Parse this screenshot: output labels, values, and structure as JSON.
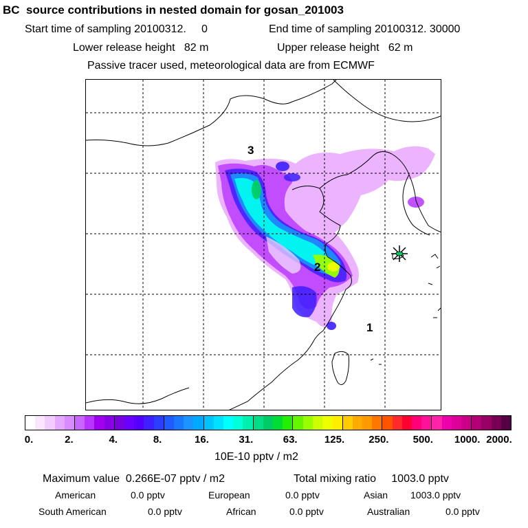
{
  "header": {
    "title": "BC  source contributions in nested domain for gosan_201003",
    "start_time": "Start time of sampling 20100312.     0",
    "end_time": "End time of sampling 20100312. 30000",
    "lower_height": "Lower release height   82 m",
    "upper_height": "Upper release height   62 m",
    "tracer_note": "Passive tracer used, meteorological data are from ECMWF"
  },
  "map": {
    "region_labels": [
      "3",
      "2",
      "1"
    ],
    "receptor_marker": "star-marker",
    "colors": {
      "plume_outer": "#cc66ff",
      "plume_purple": "#9900ee",
      "plume_blue": "#3333ff",
      "plume_lightblue": "#0099ff",
      "plume_cyan": "#00ffee",
      "plume_teal": "#00cc88",
      "plume_green": "#33ff33",
      "plume_yellow": "#eeff00",
      "coastline": "#000000",
      "gridline": "#000000"
    }
  },
  "colorbar": {
    "tick_labels": [
      "0.",
      "2.",
      "4.",
      "8.",
      "16.",
      "31.",
      "63.",
      "125.",
      "250.",
      "500.",
      "1000.",
      "2000."
    ],
    "colors": [
      "#ffffff",
      "#fbe6ff",
      "#f2ccff",
      "#e6a8ff",
      "#d98cff",
      "#c866ff",
      "#b733ff",
      "#a000f0",
      "#8a00e6",
      "#7a00e0",
      "#6a00ff",
      "#5500ff",
      "#3d1fff",
      "#2b3dff",
      "#1f5cff",
      "#1a78ff",
      "#1a94ff",
      "#00aaff",
      "#00c4ff",
      "#00e0ff",
      "#00ffff",
      "#00ffd9",
      "#00f0b0",
      "#00dd88",
      "#00cc66",
      "#00dd33",
      "#22ee00",
      "#66f500",
      "#99ff00",
      "#ccff00",
      "#eeff00",
      "#ffee00",
      "#ffcc00",
      "#ffaa00",
      "#ff9900",
      "#ff7700",
      "#ff5500",
      "#ff2a2a",
      "#ff0033",
      "#ff0077",
      "#ff1199",
      "#ff22aa",
      "#ee00aa",
      "#dd0099",
      "#cc0088",
      "#b30077",
      "#990066",
      "#770055",
      "#550044"
    ],
    "units": "10E-10 pptv / m2"
  },
  "stats": {
    "max_value": "Maximum value  0.266E-07 pptv / m2",
    "total_mixing": "Total mixing ratio     1003.0 pptv",
    "american_label": "American",
    "american_value": "0.0 pptv",
    "european_label": "European",
    "european_value": "0.0 pptv",
    "asian_label": "Asian",
    "asian_value": "1003.0 pptv",
    "south_american_label": "South American",
    "south_american_value": "0.0 pptv",
    "african_label": "African",
    "african_value": "0.0 pptv",
    "australian_label": "Australian",
    "australian_value": "0.0 pptv"
  }
}
